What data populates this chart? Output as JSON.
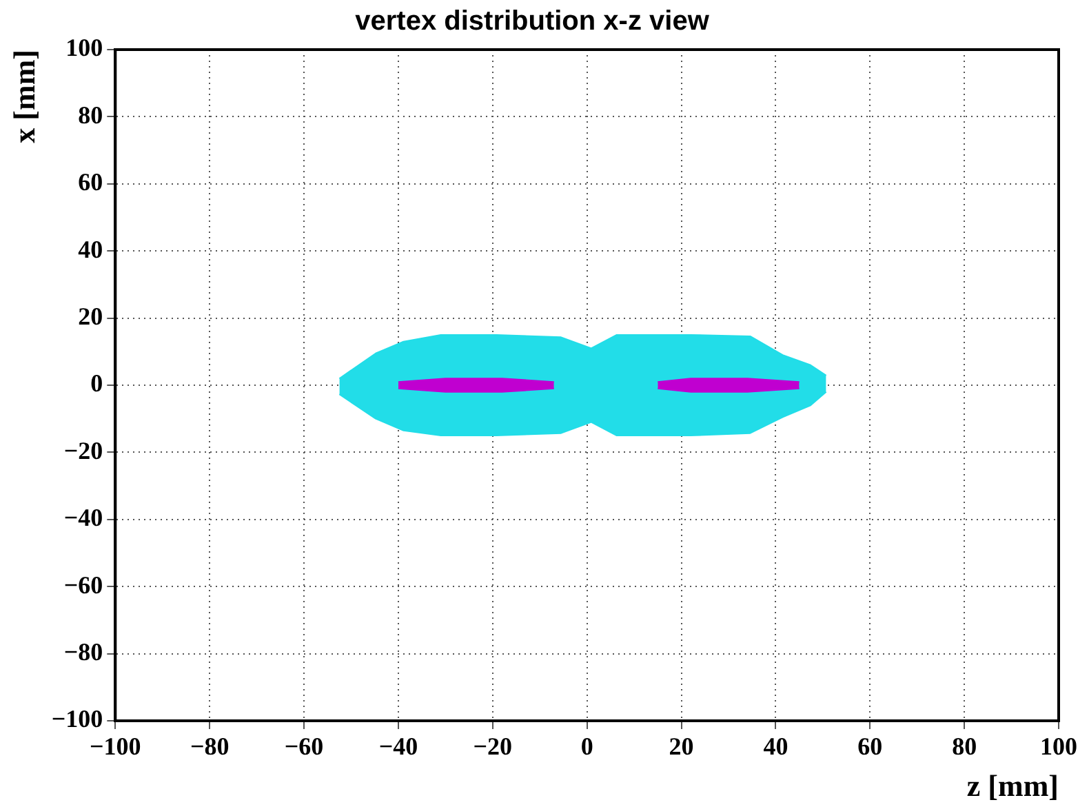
{
  "chart_data": {
    "type": "area",
    "title": "vertex distribution x-z view",
    "xlabel": "z [mm]",
    "ylabel": "x [mm]",
    "xlim": [
      -100,
      100
    ],
    "xticks": [
      -100,
      -80,
      -60,
      -40,
      -20,
      0,
      20,
      40,
      60,
      80,
      100
    ],
    "ylim": [
      -100,
      100
    ],
    "yticks": [
      -100,
      -80,
      -60,
      -40,
      -20,
      0,
      20,
      40,
      60,
      80,
      100
    ],
    "grid": true,
    "legend": false,
    "series": [
      {
        "color": "#22dde8",
        "x": [
          -52.5,
          -44.8,
          -38.9,
          -31,
          -19.2,
          -5.5,
          0.9,
          6.3,
          22,
          34.6,
          41.5,
          47.4,
          50.7
        ],
        "values": [
          2,
          9.5,
          13,
          15,
          15,
          14.3,
          11,
          15,
          15,
          14.6,
          9,
          6,
          2.9
        ]
      },
      {
        "color": "#22dde8",
        "x": [
          -52.5,
          -44.8,
          -38.9,
          -31,
          -19.2,
          -5.5,
          0.9,
          6.3,
          22,
          34.6,
          41.5,
          47.4,
          50.7
        ],
        "values": [
          -2.7,
          -10,
          -13.5,
          -15,
          -15,
          -14.3,
          -11,
          -15,
          -15,
          -14.3,
          -9.5,
          -6,
          -2
        ]
      },
      {
        "color": "#c000d0",
        "x": [
          -40,
          -30,
          -24,
          -18,
          -7,
          null,
          15,
          22,
          28,
          34,
          45
        ],
        "values": [
          1,
          2,
          2,
          2,
          1,
          null,
          1,
          2,
          2,
          2,
          1
        ]
      },
      {
        "color": "#c000d0",
        "x": [
          -40,
          -30,
          -24,
          -18,
          -7,
          null,
          15,
          22,
          28,
          34,
          45
        ],
        "values": [
          -1,
          -2,
          -2,
          -2,
          -1,
          null,
          -1,
          -2,
          -2,
          -2,
          -1
        ]
      }
    ]
  }
}
